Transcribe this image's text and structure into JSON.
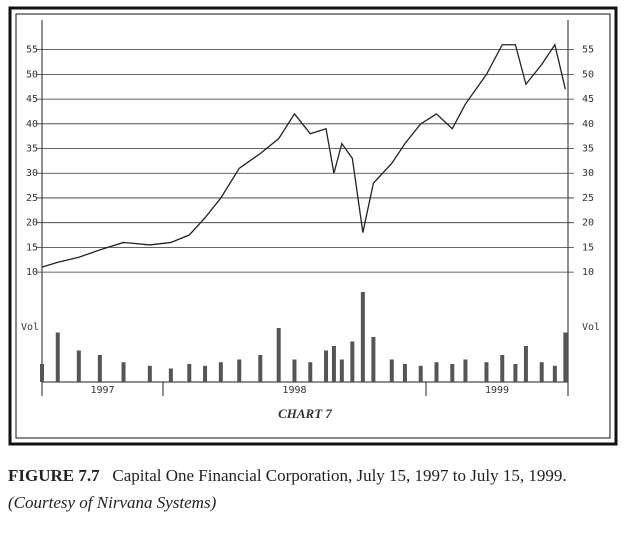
{
  "chart_data": [
    {
      "type": "line",
      "name": "price",
      "x": [
        1997.54,
        1997.6,
        1997.68,
        1997.76,
        1997.85,
        1997.95,
        1998.03,
        1998.1,
        1998.16,
        1998.22,
        1998.29,
        1998.37,
        1998.44,
        1998.5,
        1998.56,
        1998.62,
        1998.65,
        1998.68,
        1998.72,
        1998.76,
        1998.8,
        1998.87,
        1998.92,
        1998.98,
        1999.04,
        1999.1,
        1999.15,
        1999.23,
        1999.29,
        1999.34,
        1999.38,
        1999.44,
        1999.49,
        1999.53
      ],
      "series": [
        {
          "name": "Capital One",
          "color": "#222222",
          "values": [
            11,
            12,
            13,
            14.5,
            16,
            15.5,
            16,
            17.5,
            21,
            25,
            31,
            34,
            37,
            42,
            38,
            39,
            30,
            36,
            33,
            18,
            28,
            32,
            36,
            40,
            42,
            39,
            44,
            50,
            56,
            56,
            48,
            52,
            56,
            47
          ]
        }
      ],
      "xlim": [
        1997.54,
        1999.54
      ],
      "xticks": [
        {
          "value": 1997,
          "label": "1997"
        },
        {
          "value": 1998,
          "label": "1998"
        },
        {
          "value": 1999,
          "label": "1999"
        }
      ],
      "ylim": [
        8,
        61
      ],
      "yticks": [
        10,
        15,
        20,
        25,
        30,
        35,
        40,
        45,
        50,
        55
      ],
      "grid": true
    },
    {
      "type": "bar",
      "name": "volume",
      "ylabel": "Vol",
      "x": [
        1997.54,
        1997.6,
        1997.68,
        1997.76,
        1997.85,
        1997.95,
        1998.03,
        1998.1,
        1998.16,
        1998.22,
        1998.29,
        1998.37,
        1998.44,
        1998.5,
        1998.56,
        1998.62,
        1998.65,
        1998.68,
        1998.72,
        1998.76,
        1998.8,
        1998.87,
        1998.92,
        1998.98,
        1999.04,
        1999.1,
        1999.15,
        1999.23,
        1999.29,
        1999.34,
        1999.38,
        1999.44,
        1999.49,
        1999.53
      ],
      "values": [
        20,
        55,
        35,
        30,
        22,
        18,
        15,
        20,
        18,
        22,
        25,
        30,
        60,
        25,
        22,
        35,
        40,
        25,
        45,
        100,
        50,
        25,
        20,
        18,
        22,
        20,
        25,
        22,
        30,
        20,
        40,
        22,
        18,
        55
      ],
      "color": "#555555",
      "ylim": [
        0,
        100
      ]
    }
  ],
  "chart_label": "CHART 7",
  "caption": {
    "label": "FIGURE 7.7",
    "text": "Capital One Financial Corporation, July 15, 1997 to July 15, 1999.",
    "credit": "(Courtesy of Nirvana Systems)"
  }
}
